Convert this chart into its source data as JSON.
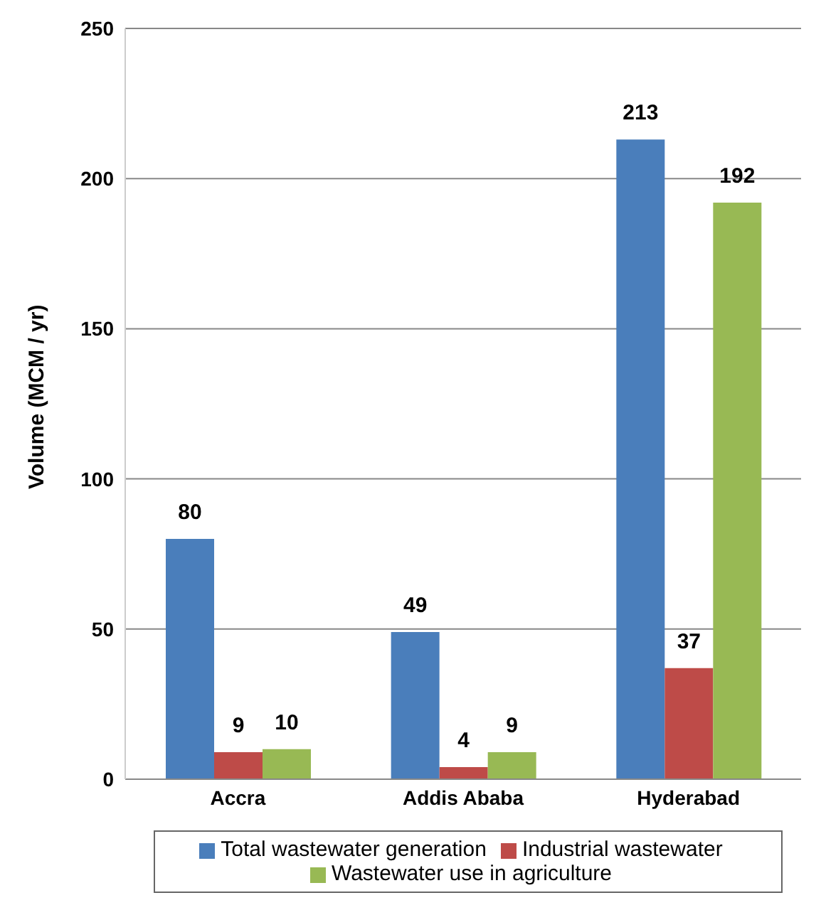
{
  "chart_data": {
    "type": "bar",
    "ylabel": "Volume (MCM / yr)",
    "categories": [
      "Accra",
      "Addis Ababa",
      "Hyderabad"
    ],
    "series": [
      {
        "name": "Total wastewater generation",
        "color": "#4a7ebb",
        "values": [
          80,
          49,
          213
        ]
      },
      {
        "name": "Industrial wastewater",
        "color": "#be4b48",
        "values": [
          9,
          4,
          37
        ]
      },
      {
        "name": "Wastewater use in agriculture",
        "color": "#98b954",
        "values": [
          10,
          9,
          192
        ]
      }
    ],
    "ylim": [
      0,
      250
    ],
    "yticks": [
      0,
      50,
      100,
      150,
      200,
      250
    ],
    "grid": "y",
    "legend": "bottom",
    "data_labels": true
  }
}
